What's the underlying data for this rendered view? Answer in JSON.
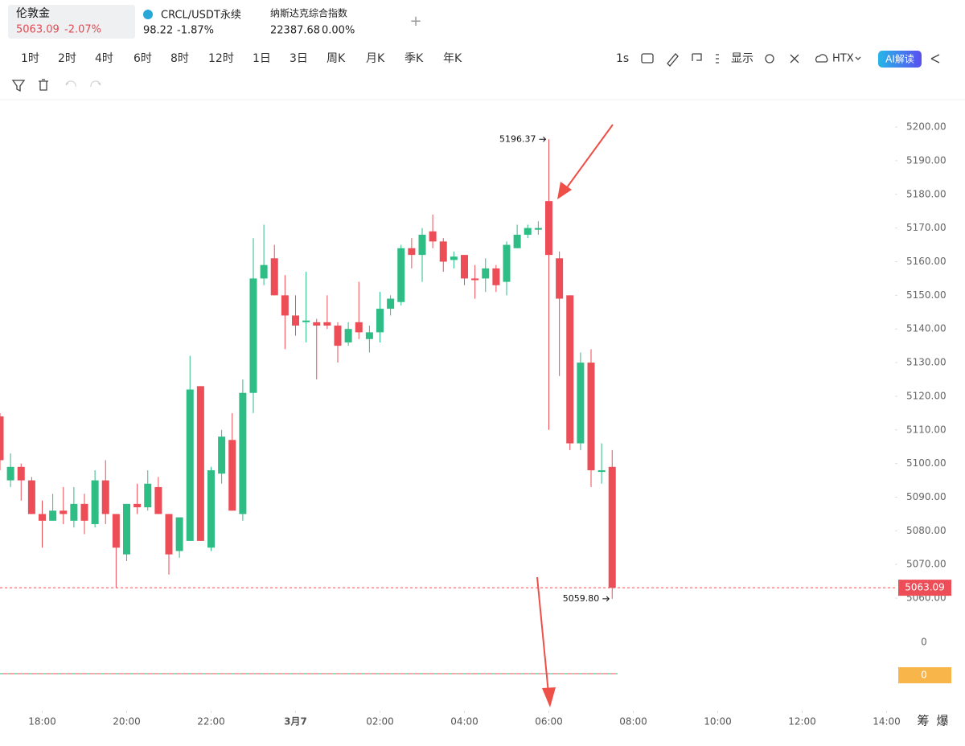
{
  "tabs": [
    {
      "name": "伦敦金",
      "price": "5063.09",
      "change": "-2.07%"
    },
    {
      "name": "CRCL/USDT永续",
      "price": "98.22",
      "change": "-1.87%"
    },
    {
      "name": "纳斯达克综合指数",
      "price": "22387.68",
      "change": "0.00%"
    }
  ],
  "add_tab": "+",
  "timeframes": [
    "1时",
    "2时",
    "4时",
    "6时",
    "8时",
    "12时",
    "1日",
    "3日",
    "周K",
    "月K",
    "季K",
    "年K"
  ],
  "toolbar": {
    "interval": "1s",
    "display": "显示",
    "exchange": "HTX",
    "ai": "AI解读"
  },
  "side_tools": [
    "筹",
    "爆"
  ],
  "chart_data": {
    "type": "candlestick",
    "x": [
      17,
      17.25,
      17.5,
      17.75,
      18,
      18.25,
      18.5,
      18.75,
      19,
      19.25,
      19.5,
      19.75,
      20,
      20.25,
      20.5,
      20.75,
      21,
      21.25,
      21.5,
      21.75,
      22,
      22.25,
      22.5,
      22.75,
      23,
      23.25,
      23.5,
      23.75,
      24,
      24.25,
      24.5,
      24.75,
      25,
      25.25,
      25.5,
      25.75,
      26,
      26.25,
      26.5,
      26.75,
      27,
      27.25,
      27.5,
      27.75,
      28,
      28.25,
      28.5,
      28.75,
      29,
      29.25,
      29.5,
      29.75,
      30,
      30.25,
      30.5,
      30.75,
      31,
      31.25,
      31.5
    ],
    "open": [
      5114,
      5095,
      5099,
      5095,
      5085,
      5083,
      5086,
      5083,
      5088,
      5082,
      5095,
      5085,
      5073,
      5088,
      5087,
      5093,
      5085,
      5074,
      5077,
      5123,
      5075,
      5097,
      5107,
      5085,
      5121,
      5155,
      5161,
      5150,
      5144,
      5142,
      5142,
      5142,
      5141,
      5136,
      5142,
      5137,
      5139,
      5146,
      5148,
      5164,
      5162,
      5169,
      5166,
      5160.5,
      5162,
      5155,
      5155,
      5158,
      5154,
      5164,
      5168,
      5169.5,
      5178,
      5161,
      5150,
      5106,
      5130,
      5097.5,
      5099
    ],
    "high": [
      5115,
      5103,
      5100,
      5096,
      5089,
      5091,
      5093,
      5093,
      5091,
      5098,
      5101,
      5085,
      5088,
      5094,
      5098,
      5096,
      5085,
      5084,
      5132,
      5123,
      5099,
      5110,
      5115,
      5125,
      5167,
      5171,
      5165,
      5156,
      5150,
      5157,
      5143,
      5150,
      5142,
      5142,
      5154,
      5141,
      5151,
      5150,
      5165,
      5167,
      5170,
      5174,
      5167,
      5163,
      5162,
      5159,
      5161,
      5159,
      5166,
      5171,
      5171,
      5172,
      5196.37,
      5163,
      5150,
      5133,
      5134,
      5106,
      5104
    ],
    "low": [
      5098,
      5093,
      5089,
      5085,
      5075,
      5083,
      5082,
      5081,
      5079,
      5081,
      5082,
      5063,
      5071,
      5085,
      5086,
      5085,
      5067,
      5072,
      5077,
      5077,
      5074,
      5094,
      5086,
      5083,
      5115,
      5153,
      5150,
      5134,
      5138,
      5136,
      5125,
      5140,
      5130,
      5135,
      5137,
      5133,
      5136,
      5144,
      5147,
      5158,
      5154,
      5164,
      5157,
      5158,
      5153,
      5149,
      5151,
      5151,
      5150,
      5164,
      5167,
      5168,
      5110,
      5126,
      5104,
      5104,
      5093,
      5094,
      5059.8
    ],
    "close": [
      5101,
      5099,
      5095,
      5085,
      5083,
      5086,
      5085,
      5088,
      5083,
      5095,
      5085,
      5075,
      5088,
      5087,
      5094,
      5085,
      5073,
      5084,
      5122,
      5077,
      5098,
      5108,
      5086,
      5121,
      5155,
      5159,
      5150,
      5144,
      5141,
      5142.5,
      5141,
      5141,
      5135,
      5140,
      5139,
      5139,
      5146,
      5149,
      5164,
      5162,
      5168,
      5166,
      5160,
      5161.5,
      5155,
      5154.5,
      5158,
      5153,
      5165,
      5168,
      5170,
      5170,
      5162,
      5149,
      5106,
      5130,
      5098,
      5098,
      5063.09
    ],
    "colors": {
      "up": "#2ebd85",
      "down": "#ec4d57"
    },
    "xlim": [
      17,
      38.2
    ],
    "xticks": [
      {
        "value": 18,
        "label": "18:00"
      },
      {
        "value": 20,
        "label": "20:00"
      },
      {
        "value": 22,
        "label": "22:00"
      },
      {
        "value": 24,
        "label": "3月7"
      },
      {
        "value": 26,
        "label": "02:00"
      },
      {
        "value": 28,
        "label": "04:00"
      },
      {
        "value": 30,
        "label": "06:00"
      },
      {
        "value": 32,
        "label": "08:00"
      },
      {
        "value": 34,
        "label": "10:00"
      },
      {
        "value": 36,
        "label": "12:00"
      },
      {
        "value": 38,
        "label": "14:00"
      }
    ],
    "ylim": [
      5053.8,
      5207.9
    ],
    "yticks": [
      {
        "value": 5060,
        "label": "5060.00"
      },
      {
        "value": 5070,
        "label": "5070.00"
      },
      {
        "value": 5080,
        "label": "5080.00"
      },
      {
        "value": 5090,
        "label": "5090.00"
      },
      {
        "value": 5100,
        "label": "5100.00"
      },
      {
        "value": 5110,
        "label": "5110.00"
      },
      {
        "value": 5120,
        "label": "5120.00"
      },
      {
        "value": 5130,
        "label": "5130.00"
      },
      {
        "value": 5140,
        "label": "5140.00"
      },
      {
        "value": 5150,
        "label": "5150.00"
      },
      {
        "value": 5160,
        "label": "5160.00"
      },
      {
        "value": 5170,
        "label": "5170.00"
      },
      {
        "value": 5180,
        "label": "5180.00"
      },
      {
        "value": 5190,
        "label": "5190.00"
      },
      {
        "value": 5200,
        "label": "5200.00"
      }
    ],
    "high_label": "5196.37",
    "low_label": "5059.80",
    "indicator": {
      "axis_label": "0",
      "badge": "0"
    }
  }
}
